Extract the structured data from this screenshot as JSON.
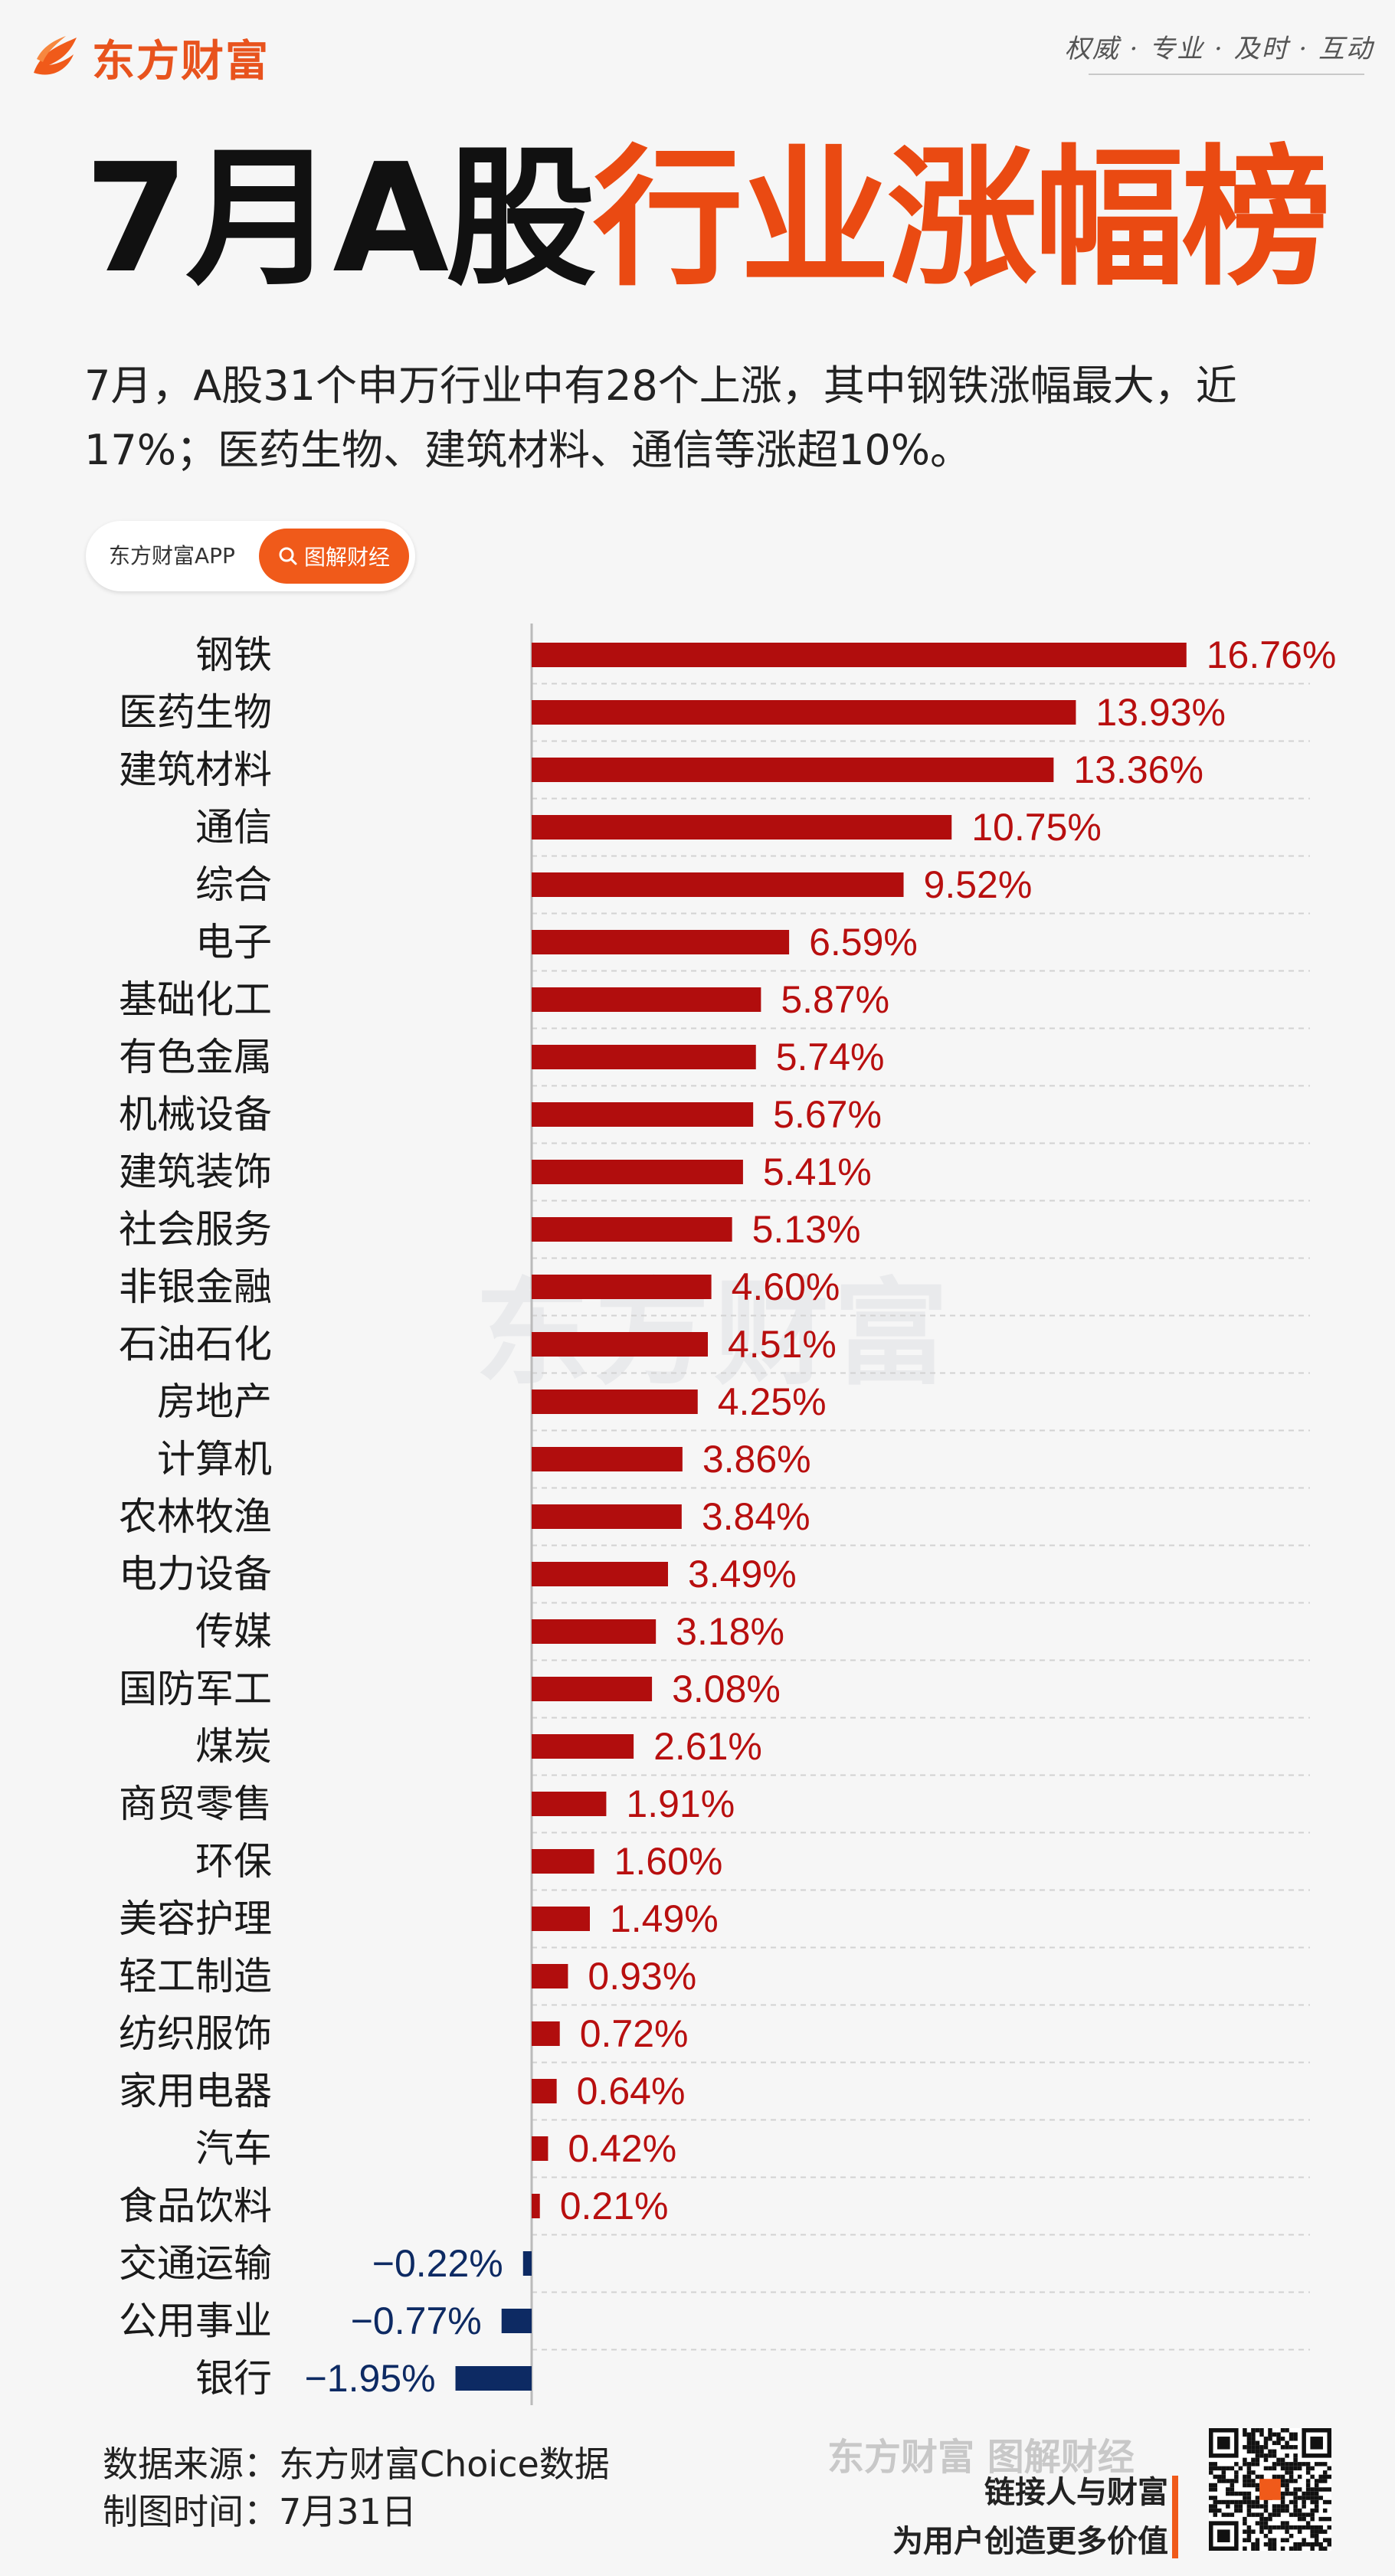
{
  "brand": {
    "logo_text": "东方财富",
    "slogan": "权威 · 专业 · 及时 · 互动"
  },
  "title": {
    "black": "7月A股",
    "red": "行业涨幅榜"
  },
  "subtitle": "7月，A股31个申万行业中有28个上涨，其中钢铁涨幅最大，近17%；医药生物、建筑材料、通信等涨超10%。",
  "pill": {
    "left": "东方财富APP",
    "right": "图解财经"
  },
  "colors": {
    "positive": "#b10d0d",
    "negative": "#0d2a63",
    "accent": "#ea4a12"
  },
  "chart_data": {
    "type": "bar",
    "orientation": "horizontal",
    "value_format": "percent",
    "categories": [
      "钢铁",
      "医药生物",
      "建筑材料",
      "通信",
      "综合",
      "电子",
      "基础化工",
      "有色金属",
      "机械设备",
      "建筑装饰",
      "社会服务",
      "非银金融",
      "石油石化",
      "房地产",
      "计算机",
      "农林牧渔",
      "电力设备",
      "传媒",
      "国防军工",
      "煤炭",
      "商贸零售",
      "环保",
      "美容护理",
      "轻工制造",
      "纺织服饰",
      "家用电器",
      "汽车",
      "食品饮料",
      "交通运输",
      "公用事业",
      "银行"
    ],
    "values": [
      16.76,
      13.93,
      13.36,
      10.75,
      9.52,
      6.59,
      5.87,
      5.74,
      5.67,
      5.41,
      5.13,
      4.6,
      4.51,
      4.25,
      3.86,
      3.84,
      3.49,
      3.18,
      3.08,
      2.61,
      1.91,
      1.6,
      1.49,
      0.93,
      0.72,
      0.64,
      0.42,
      0.21,
      -0.22,
      -0.77,
      -1.95
    ],
    "labels": [
      "16.76%",
      "13.93%",
      "13.36%",
      "10.75%",
      "9.52%",
      "6.59%",
      "5.87%",
      "5.74%",
      "5.67%",
      "5.41%",
      "5.13%",
      "4.60%",
      "4.51%",
      "4.25%",
      "3.86%",
      "3.84%",
      "3.49%",
      "3.18%",
      "3.08%",
      "2.61%",
      "1.91%",
      "1.60%",
      "1.49%",
      "0.93%",
      "0.72%",
      "0.64%",
      "0.42%",
      "0.21%",
      "−0.22%",
      "−0.77%",
      "−1.95%"
    ],
    "title": "",
    "xlabel": "",
    "ylabel": "",
    "grid": "horizontal dashed"
  },
  "watermark": "东方财富",
  "footer": {
    "source": "数据来源：东方财富Choice数据",
    "date": "制图时间：7月31日",
    "brand": "东方财富 图解财经",
    "slogan1": "链接人与财富",
    "slogan2": "为用户创造更多价值"
  }
}
